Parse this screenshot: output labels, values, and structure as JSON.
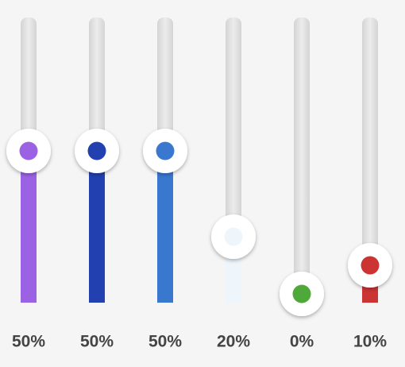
{
  "sliders": [
    {
      "label": "50%",
      "value": 50,
      "color": "#9b63e3"
    },
    {
      "label": "50%",
      "value": 50,
      "color": "#2340b0"
    },
    {
      "label": "50%",
      "value": 50,
      "color": "#3a78d0"
    },
    {
      "label": "20%",
      "value": 20,
      "color": "#eef6fc"
    },
    {
      "label": "0%",
      "value": 0,
      "color": "#4fa83a"
    },
    {
      "label": "10%",
      "value": 10,
      "color": "#cc3333"
    }
  ]
}
